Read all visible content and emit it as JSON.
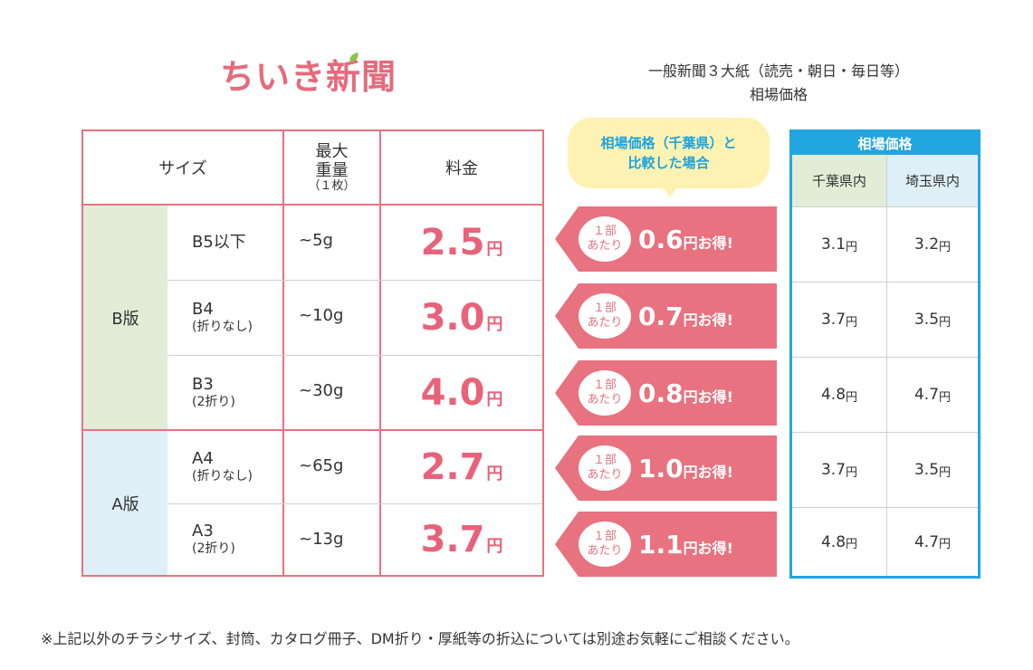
{
  "logo": {
    "text": "ちいき新聞"
  },
  "market_heading": {
    "line1": "一般新聞３大紙（読売・朝日・毎日等）",
    "line2": "相場価格"
  },
  "table": {
    "headers": {
      "size": "サイズ",
      "weight_line1": "最大",
      "weight_line2": "重量",
      "weight_sub": "（１枚）",
      "price": "料金"
    },
    "groups": {
      "b": "B版",
      "a": "A版"
    },
    "price_unit": "円",
    "rows": [
      {
        "name": "B5以下",
        "sub": "",
        "weight": "~5g",
        "price": "2.5"
      },
      {
        "name": "B4",
        "sub": "(折りなし)",
        "weight": "~10g",
        "price": "3.0"
      },
      {
        "name": "B3",
        "sub": "(2折り)",
        "weight": "~30g",
        "price": "4.0"
      },
      {
        "name": "A4",
        "sub": "(折りなし)",
        "weight": "~65g",
        "price": "2.7"
      },
      {
        "name": "A3",
        "sub": "(2折り)",
        "weight": "~13g",
        "price": "3.7"
      }
    ]
  },
  "bubble": {
    "line1": "相場価格（千葉県）と",
    "line2": "比較した場合"
  },
  "savings": {
    "per_line1": "１部",
    "per_line2": "あたり",
    "suffix": "円お得!",
    "amounts": [
      "0.6",
      "0.7",
      "0.8",
      "1.0",
      "1.1"
    ]
  },
  "market_table": {
    "title": "相場価格",
    "col1": "千葉県内",
    "col2": "埼玉県内",
    "unit": "円",
    "rows": [
      {
        "chiba": "3.1",
        "saitama": "3.2"
      },
      {
        "chiba": "3.7",
        "saitama": "3.5"
      },
      {
        "chiba": "4.8",
        "saitama": "4.7"
      },
      {
        "chiba": "3.7",
        "saitama": "3.5"
      },
      {
        "chiba": "4.8",
        "saitama": "4.7"
      }
    ]
  },
  "footnote": "※上記以外のチラシサイズ、封筒、カタログ冊子、DM折り・厚紙等の折込については別途お気軽にご相談ください。",
  "colors": {
    "accent_pink": "#e8727f",
    "accent_blue": "#22a6e0",
    "bubble_yellow": "#fdf2b2"
  }
}
